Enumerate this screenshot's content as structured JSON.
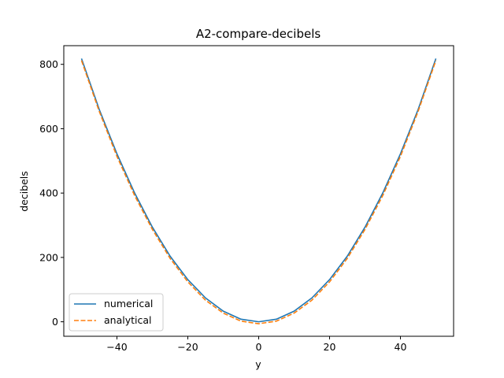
{
  "chart_data": {
    "type": "line",
    "title": "A2-compare-decibels",
    "xlabel": "y",
    "ylabel": "decibels",
    "xlim": [
      -55,
      55
    ],
    "ylim": [
      -45,
      858
    ],
    "xticks": [
      -40,
      -20,
      0,
      20,
      40
    ],
    "yticks": [
      0,
      200,
      400,
      600,
      800
    ],
    "grid": false,
    "legend": {
      "position": "lower-left"
    },
    "x": [
      -50,
      -45,
      -40,
      -35,
      -30,
      -25,
      -20,
      -15,
      -10,
      -5,
      0,
      5,
      10,
      15,
      20,
      25,
      30,
      35,
      40,
      45,
      50
    ],
    "series": [
      {
        "name": "numerical",
        "color": "#1f77b4",
        "dash": "solid",
        "values": [
          818,
          660,
          522,
          400,
          294,
          204,
          131,
          74,
          33,
          8,
          0,
          8,
          33,
          74,
          131,
          204,
          294,
          400,
          522,
          660,
          818
        ]
      },
      {
        "name": "analytical",
        "color": "#ff7f0e",
        "dash": "dashed",
        "values": [
          812,
          654,
          514,
          392,
          287,
          197,
          124,
          67,
          27,
          2,
          -6,
          2,
          27,
          67,
          124,
          197,
          287,
          392,
          514,
          654,
          812
        ]
      }
    ]
  }
}
